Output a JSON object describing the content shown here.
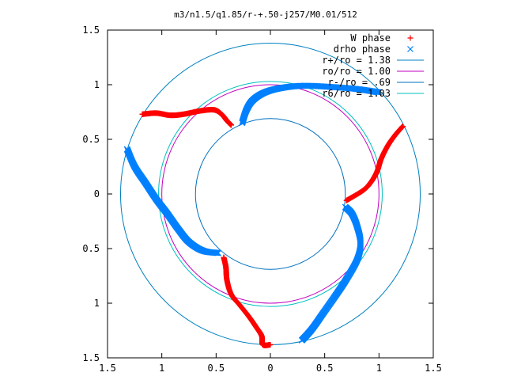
{
  "chart_data": {
    "type": "scatter",
    "title": "m3/n1.5/q1.85/r-+.50-j257/M0.01/512",
    "xlabel": "",
    "ylabel": "",
    "xlim": [
      -1.5,
      1.5
    ],
    "ylim": [
      -1.5,
      1.5
    ],
    "x_tick_labels": [
      "1.5",
      "1",
      "0.5",
      "0",
      "0.5",
      "1",
      "1.5"
    ],
    "y_tick_labels": [
      "1.5",
      "1",
      "0.5",
      "0",
      "0.5",
      "1",
      "1.5"
    ],
    "grid": false,
    "legend_position": "top-right",
    "series": [
      {
        "name": "W phase",
        "kind": "points",
        "marker": "plus",
        "color": "#ff0000",
        "arms": [
          [
            [
              -1.18,
              0.73
            ],
            [
              -1.05,
              0.74
            ],
            [
              -0.92,
              0.72
            ],
            [
              -0.8,
              0.73
            ],
            [
              -0.65,
              0.76
            ],
            [
              -0.52,
              0.77
            ],
            [
              -0.45,
              0.73
            ],
            [
              -0.4,
              0.67
            ],
            [
              -0.36,
              0.63
            ]
          ],
          [
            [
              1.22,
              0.62
            ],
            [
              1.15,
              0.54
            ],
            [
              1.08,
              0.44
            ],
            [
              1.02,
              0.32
            ],
            [
              0.98,
              0.2
            ],
            [
              0.92,
              0.1
            ],
            [
              0.85,
              0.03
            ],
            [
              0.7,
              -0.06
            ]
          ],
          [
            [
              -0.43,
              -0.58
            ],
            [
              -0.41,
              -0.67
            ],
            [
              -0.4,
              -0.79
            ],
            [
              -0.36,
              -0.92
            ],
            [
              -0.28,
              -1.02
            ],
            [
              -0.2,
              -1.12
            ],
            [
              -0.13,
              -1.22
            ],
            [
              -0.08,
              -1.3
            ],
            [
              -0.07,
              -1.38
            ],
            [
              0.0,
              -1.38
            ]
          ]
        ]
      },
      {
        "name": "drho phase",
        "kind": "points",
        "marker": "cross",
        "color": "#0080ff",
        "arms": [
          [
            [
              -1.32,
              0.41
            ],
            [
              -1.25,
              0.25
            ],
            [
              -1.15,
              0.1
            ],
            [
              -1.05,
              -0.05
            ],
            [
              -0.95,
              -0.18
            ],
            [
              -0.85,
              -0.32
            ],
            [
              -0.75,
              -0.44
            ],
            [
              -0.62,
              -0.52
            ],
            [
              -0.48,
              -0.54
            ]
          ],
          [
            [
              -0.26,
              0.65
            ],
            [
              -0.22,
              0.77
            ],
            [
              -0.16,
              0.86
            ],
            [
              -0.05,
              0.93
            ],
            [
              0.1,
              0.97
            ],
            [
              0.3,
              0.99
            ],
            [
              0.55,
              0.98
            ],
            [
              0.8,
              0.96
            ],
            [
              1.0,
              0.93
            ]
          ],
          [
            [
              0.69,
              -0.12
            ],
            [
              0.75,
              -0.18
            ],
            [
              0.8,
              -0.3
            ],
            [
              0.83,
              -0.45
            ],
            [
              0.8,
              -0.6
            ],
            [
              0.7,
              -0.78
            ],
            [
              0.6,
              -0.93
            ],
            [
              0.48,
              -1.1
            ],
            [
              0.38,
              -1.24
            ],
            [
              0.29,
              -1.34
            ]
          ]
        ]
      },
      {
        "name": "r+/ro = 1.38",
        "kind": "circle",
        "r": 1.38,
        "color": "#0080c0"
      },
      {
        "name": "ro/ro = 1.00",
        "kind": "circle",
        "r": 1.0,
        "color": "#c000c0"
      },
      {
        "name": "r-/ro = .69",
        "kind": "circle",
        "r": 0.69,
        "color": "#0070c0"
      },
      {
        "name": "r6/ro = 1.03",
        "kind": "circle",
        "r": 1.03,
        "color": "#00c0c0"
      }
    ]
  }
}
